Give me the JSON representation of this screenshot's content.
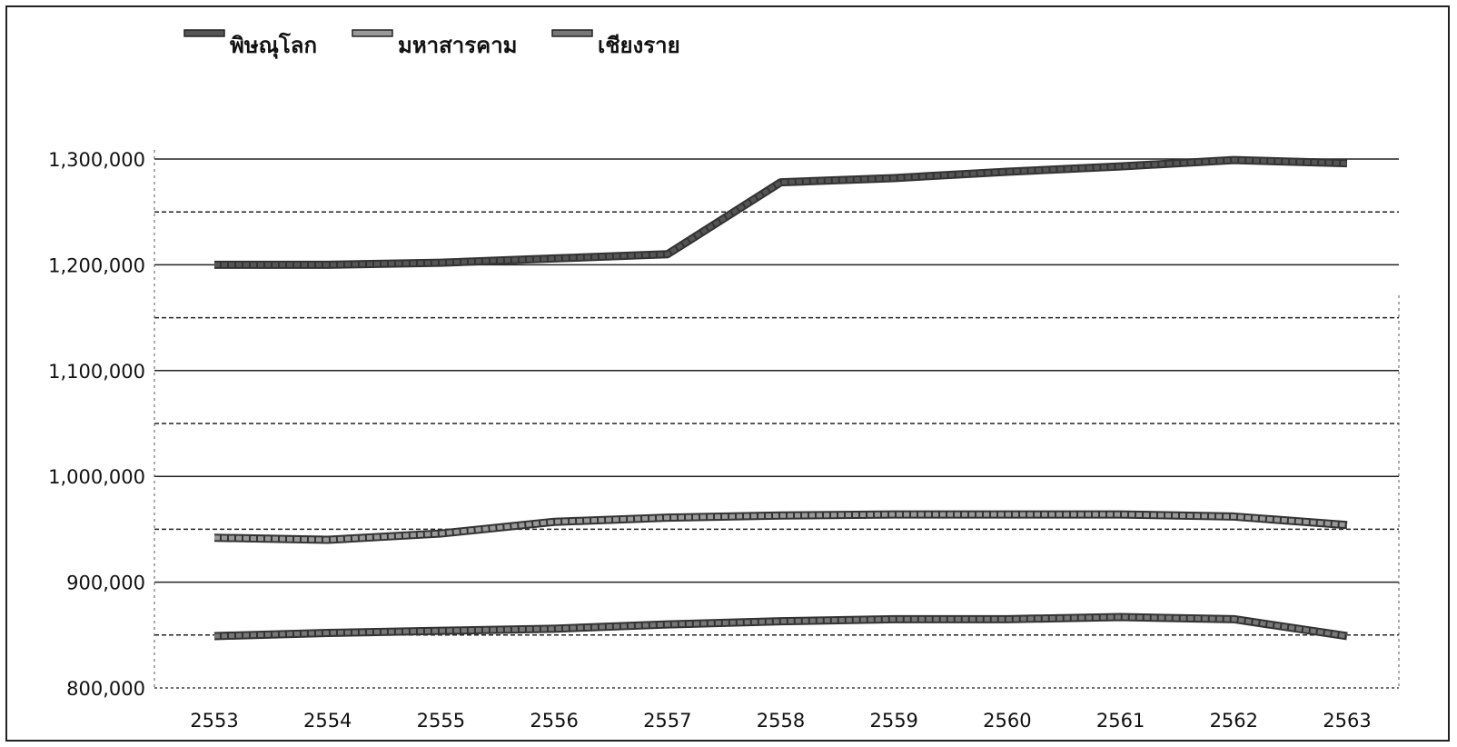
{
  "chart_data": {
    "type": "line",
    "title": "",
    "xlabel": "",
    "ylabel": "",
    "categories": [
      "2553",
      "2554",
      "2555",
      "2556",
      "2557",
      "2558",
      "2559",
      "2560",
      "2561",
      "2562",
      "2563"
    ],
    "ylim": [
      800000,
      1300000
    ],
    "yticks": [
      800000,
      900000,
      1000000,
      1100000,
      1200000,
      1300000
    ],
    "ytick_labels": [
      "800,000",
      "900,000",
      "1,000,000",
      "1,100,000",
      "1,200,000",
      "1,300,000"
    ],
    "grid": true,
    "legend_position": "top-left",
    "series": [
      {
        "name": "พิษณุโลก",
        "color": "#555555",
        "values": [
          1200000,
          1200000,
          1202000,
          1206000,
          1210000,
          1278000,
          1282000,
          1288000,
          1293000,
          1299000,
          1296000
        ]
      },
      {
        "name": "มหาสารคาม",
        "color": "#999999",
        "values": [
          942000,
          940000,
          946000,
          957000,
          961000,
          963000,
          964000,
          964000,
          964000,
          962000,
          954000
        ]
      },
      {
        "name": "เชียงราย",
        "color": "#777777",
        "values": [
          849000,
          852000,
          854000,
          856000,
          860000,
          863000,
          865000,
          865000,
          867000,
          865000,
          849000
        ]
      }
    ]
  }
}
